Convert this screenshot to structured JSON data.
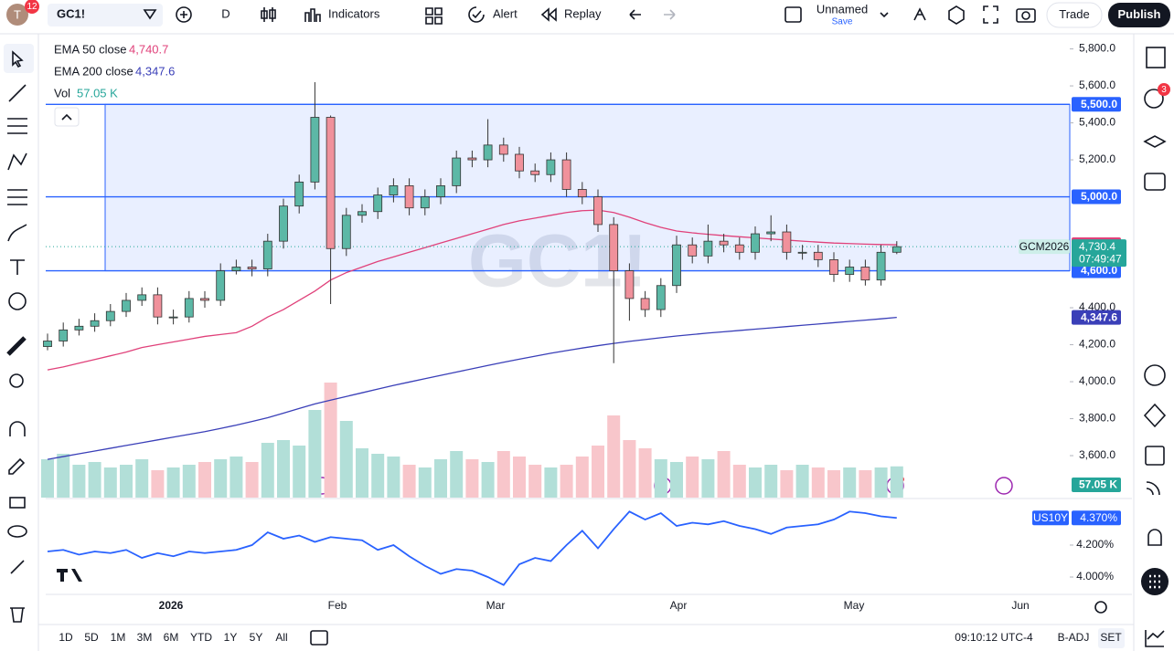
{
  "toolbar": {
    "avatar": "T",
    "notifications": "12",
    "symbol": "GC1!",
    "interval": "D",
    "indicators": "Indicators",
    "alert": "Alert",
    "replay": "Replay",
    "layout_name": "Unnamed",
    "save": "Save",
    "trade": "Trade",
    "publish": "Publish",
    "alerts_badge": "3"
  },
  "legend": [
    {
      "name": "EMA 50 close",
      "value": "4,740.7"
    },
    {
      "name": "EMA 200 close",
      "value": "4,347.6"
    },
    {
      "name": "Vol",
      "value": "57.05 K"
    }
  ],
  "watermark": "GC1!",
  "time_axis": [
    "2026",
    "Feb",
    "Mar",
    "Apr",
    "May",
    "Jun"
  ],
  "bottom_bar": {
    "ranges": [
      "1D",
      "5D",
      "1M",
      "3M",
      "6M",
      "YTD",
      "1Y",
      "5Y",
      "All"
    ],
    "clock": "09:10:12 UTC-4",
    "adjust": "B-ADJ",
    "session": "SET"
  },
  "chart_data": {
    "type": "candlestick",
    "up_color": "#5cb8a6",
    "down_color": "#f0919b",
    "ylim": [
      3373,
      5867
    ],
    "yticks": [
      {
        "value": 5800,
        "label": "5,800.0"
      },
      {
        "value": 5600,
        "label": "5,600.0"
      },
      {
        "value": 5400,
        "label": "5,400.0"
      },
      {
        "value": 5200,
        "label": "5,200.0"
      },
      {
        "value": 4400,
        "label": "4,400.0"
      },
      {
        "value": 4200,
        "label": "4,200.0"
      },
      {
        "value": 4000,
        "label": "4,000.0"
      },
      {
        "value": 3800,
        "label": "3,800.0"
      },
      {
        "value": 3600,
        "label": "3,600.0"
      }
    ],
    "open": [
      4190,
      4220,
      4280,
      4300,
      4330,
      4380,
      4440,
      4470,
      4350,
      4350,
      4450,
      4440,
      4600,
      4620,
      4610,
      4760,
      4950,
      5080,
      5430,
      4720,
      4900,
      4920,
      5010,
      5060,
      4940,
      5000,
      5060,
      5210,
      5200,
      5280,
      5230,
      5140,
      5120,
      5200,
      5040,
      5000,
      4850,
      4600,
      4450,
      4390,
      4520,
      4740,
      4680,
      4760,
      4740,
      4700,
      4800,
      4810,
      4700,
      4700,
      4660,
      4580,
      4620,
      4550,
      4700
    ],
    "high": [
      4260,
      4320,
      4340,
      4370,
      4420,
      4480,
      4510,
      4510,
      4390,
      4490,
      4490,
      4640,
      4660,
      4660,
      4800,
      4990,
      5120,
      5620,
      5440,
      4940,
      4960,
      5050,
      5100,
      5100,
      5040,
      5100,
      5250,
      5250,
      5420,
      5320,
      5270,
      5180,
      5240,
      5240,
      5080,
      5040,
      4890,
      4640,
      4490,
      4560,
      4790,
      4780,
      4850,
      4800,
      4780,
      4840,
      4900,
      4850,
      4740,
      4740,
      4700,
      4660,
      4660,
      4740,
      4760
    ],
    "low": [
      4170,
      4190,
      4250,
      4270,
      4300,
      4350,
      4410,
      4310,
      4310,
      4320,
      4400,
      4410,
      4580,
      4570,
      4570,
      4720,
      4910,
      5040,
      4420,
      4680,
      4860,
      4880,
      4970,
      4900,
      4900,
      4960,
      5020,
      5160,
      5160,
      5190,
      5100,
      5080,
      5080,
      5000,
      4960,
      4810,
      4100,
      4330,
      4350,
      4350,
      4480,
      4640,
      4640,
      4700,
      4660,
      4660,
      4760,
      4660,
      4660,
      4620,
      4540,
      4540,
      4520,
      4520,
      4690
    ],
    "close": [
      4220,
      4280,
      4300,
      4330,
      4380,
      4440,
      4470,
      4350,
      4350,
      4450,
      4440,
      4600,
      4620,
      4610,
      4760,
      4950,
      5080,
      5430,
      4720,
      4900,
      4920,
      5010,
      5060,
      4940,
      5000,
      5060,
      5210,
      5200,
      5280,
      5230,
      5140,
      5120,
      5200,
      5040,
      5000,
      4850,
      4600,
      4450,
      4390,
      4520,
      4740,
      4680,
      4760,
      4740,
      4700,
      4800,
      4810,
      4700,
      4700,
      4660,
      4580,
      4620,
      4550,
      4700,
      4730.4
    ],
    "volume": [
      70,
      80,
      60,
      65,
      55,
      60,
      70,
      50,
      55,
      60,
      65,
      70,
      75,
      65,
      100,
      105,
      95,
      160,
      210,
      140,
      90,
      80,
      75,
      60,
      55,
      70,
      85,
      70,
      65,
      85,
      75,
      60,
      55,
      60,
      75,
      95,
      150,
      105,
      90,
      70,
      65,
      75,
      70,
      85,
      60,
      55,
      60,
      50,
      60,
      55,
      50,
      55,
      50,
      55,
      57.05
    ],
    "ema50": [
      4064,
      4080,
      4100,
      4120,
      4140,
      4160,
      4185,
      4200,
      4215,
      4230,
      4245,
      4255,
      4265,
      4300,
      4350,
      4390,
      4440,
      4490,
      4550,
      4590,
      4620,
      4650,
      4675,
      4700,
      4725,
      4750,
      4775,
      4800,
      4825,
      4850,
      4870,
      4885,
      4900,
      4915,
      4925,
      4928,
      4915,
      4890,
      4860,
      4835,
      4815,
      4805,
      4797,
      4790,
      4784,
      4778,
      4772,
      4766,
      4760,
      4755,
      4750,
      4747,
      4744,
      4742,
      4740.7
    ],
    "ema200": [
      3580,
      3595,
      3610,
      3625,
      3640,
      3655,
      3670,
      3685,
      3700,
      3715,
      3730,
      3747,
      3765,
      3785,
      3805,
      3830,
      3855,
      3880,
      3900,
      3920,
      3940,
      3960,
      3980,
      3998,
      4016,
      4034,
      4052,
      4070,
      4088,
      4105,
      4122,
      4138,
      4154,
      4168,
      4182,
      4195,
      4207,
      4218,
      4228,
      4238,
      4247,
      4255,
      4263,
      4270,
      4277,
      4284,
      4291,
      4298,
      4305,
      4312,
      4319,
      4326,
      4333,
      4340,
      4347.6
    ],
    "ema50_color": "#e0417a",
    "ema200_color": "#3a3fb8",
    "hlines": [
      {
        "value": 5500,
        "label": "5,500.0"
      },
      {
        "value": 5000,
        "label": "5,000.0"
      },
      {
        "value": 4600,
        "label": "4,600.0"
      }
    ],
    "ema50_tag": {
      "value": 4740.7,
      "label": "4,740.7"
    },
    "ema200_tag": {
      "value": 4347.6,
      "label": "4,347.6"
    },
    "last_price": {
      "symbol": "GCM2026",
      "value": 4730.4,
      "label": "4,730.4",
      "countdown": "07:49:47"
    },
    "volume_tag": "57.05 K"
  },
  "indicator": {
    "name": "US10Y",
    "color": "#2962ff",
    "ylim": [
      3.897,
      4.486
    ],
    "yticks": [
      {
        "value": 4.2,
        "label": "4.200%"
      },
      {
        "value": 4,
        "label": "4.000%"
      }
    ],
    "values": [
      4.16,
      4.17,
      4.14,
      4.16,
      4.15,
      4.17,
      4.12,
      4.15,
      4.13,
      4.16,
      4.15,
      4.16,
      4.17,
      4.2,
      4.28,
      4.24,
      4.26,
      4.22,
      4.25,
      4.24,
      4.23,
      4.17,
      4.2,
      4.13,
      4.07,
      4.02,
      4.05,
      4.04,
      4.0,
      3.95,
      4.08,
      4.12,
      4.1,
      4.2,
      4.29,
      4.18,
      4.3,
      4.41,
      4.36,
      4.4,
      4.32,
      4.34,
      4.33,
      4.35,
      4.32,
      4.3,
      4.27,
      4.31,
      4.32,
      4.33,
      4.36,
      4.41,
      4.4,
      4.38,
      4.37
    ],
    "last": {
      "value": 4.37,
      "label": "4.370%"
    }
  }
}
